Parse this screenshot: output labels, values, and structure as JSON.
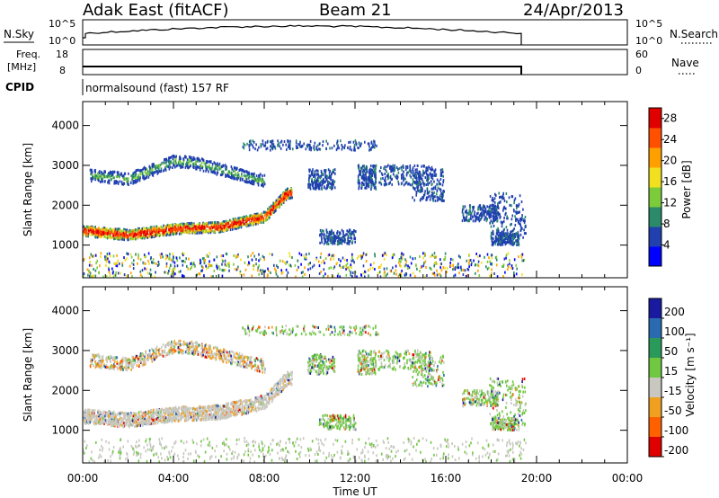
{
  "header": {
    "station": "Adak East (fitACF)",
    "beam": "Beam 21",
    "date": "24/Apr/2013"
  },
  "top_panels": {
    "nsky_label": "N.Sky",
    "nsky_ticks": [
      "10^5",
      "10^0"
    ],
    "nsearch_label": "N.Search",
    "nsearch_ticks": [
      "10^5",
      "10^0"
    ],
    "freq_label": "Freq.",
    "freq_unit": "[MHz]",
    "freq_ticks": [
      "18",
      "8"
    ],
    "nave_label": "Nave",
    "nave_ticks": [
      "60",
      "0"
    ],
    "cpid_label": "CPID",
    "cpid_text": "normalsound (fast) 157 RF"
  },
  "chart_data": [
    {
      "type": "heatmap",
      "panel": "power",
      "ylabel": "Slant Range [km]",
      "xlabel": "Time UT",
      "x_ticks": [
        "00:00",
        "04:00",
        "08:00",
        "12:00",
        "16:00",
        "20:00",
        "00:00"
      ],
      "x_range_hours": [
        0,
        24
      ],
      "data_end_hours": 19.5,
      "y_ticks": [
        1000,
        2000,
        3000,
        4000
      ],
      "ylim": [
        180,
        4600
      ],
      "colorbar": {
        "label": "Power [dB]",
        "ticks": [
          4,
          8,
          12,
          16,
          20,
          24,
          28
        ],
        "range": [
          0,
          30
        ],
        "colors": [
          "#0000ff",
          "#2040b0",
          "#2a8a6a",
          "#7ccb3a",
          "#f0e020",
          "#ffa000",
          "#ff5000",
          "#e00000"
        ]
      },
      "features": [
        {
          "name": "main trace",
          "ranges_km": [
            [
              0,
              1350
            ],
            [
              2,
              1250
            ],
            [
              4,
              1400
            ],
            [
              6,
              1450
            ],
            [
              8,
              1700
            ],
            [
              9,
              2300
            ]
          ],
          "level": 24
        },
        {
          "name": "upper trace",
          "ranges_km": [
            [
              0.3,
              2750
            ],
            [
              2,
              2650
            ],
            [
              4,
              3100
            ],
            [
              5,
              3050
            ],
            [
              7,
              2750
            ],
            [
              8,
              2600
            ]
          ],
          "level": 8
        }
      ]
    },
    {
      "type": "heatmap",
      "panel": "velocity",
      "ylabel": "Slant Range [km]",
      "xlabel": "Time UT",
      "x_ticks": [
        "00:00",
        "04:00",
        "08:00",
        "12:00",
        "16:00",
        "20:00",
        "00:00"
      ],
      "x_range_hours": [
        0,
        24
      ],
      "data_end_hours": 19.5,
      "y_ticks": [
        1000,
        2000,
        3000,
        4000
      ],
      "ylim": [
        180,
        4600
      ],
      "colorbar": {
        "label": "Velocity [m s⁻¹]",
        "ticks": [
          200,
          100,
          50,
          15,
          -15,
          -50,
          -100,
          -200
        ],
        "colors": [
          "#1a1aa0",
          "#2a6ab0",
          "#2a9a5a",
          "#70c840",
          "#c8c8c0",
          "#f0a020",
          "#ff6000",
          "#e00000"
        ]
      }
    }
  ],
  "colors": {
    "frame": "#000000",
    "ground_scatter": "#c0c0b8"
  }
}
